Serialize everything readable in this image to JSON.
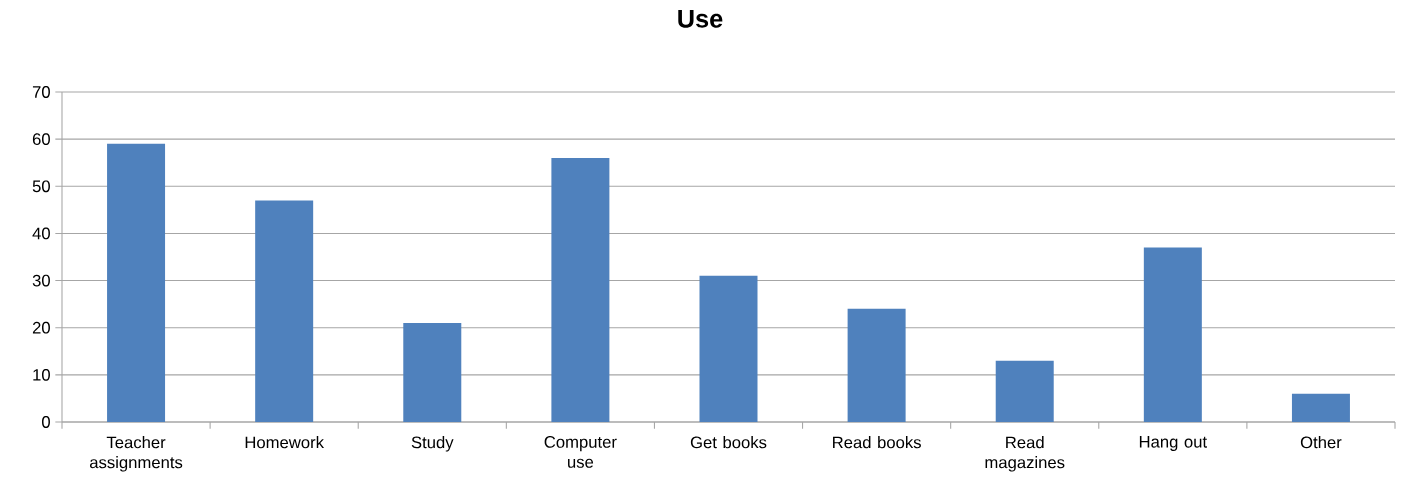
{
  "chart_data": {
    "type": "bar",
    "title": "Use",
    "categories": [
      "Teacher assignments",
      "Homework",
      "Study",
      "Computer use",
      "Get books",
      "Read books",
      "Read magazines",
      "Hang out",
      "Other"
    ],
    "values": [
      59,
      47,
      21,
      56,
      31,
      24,
      13,
      37,
      6
    ],
    "color": "#4f81bd",
    "ylim": [
      0,
      70
    ],
    "yticks": [
      0,
      10,
      20,
      30,
      40,
      50,
      60,
      70
    ],
    "grid": "y"
  }
}
